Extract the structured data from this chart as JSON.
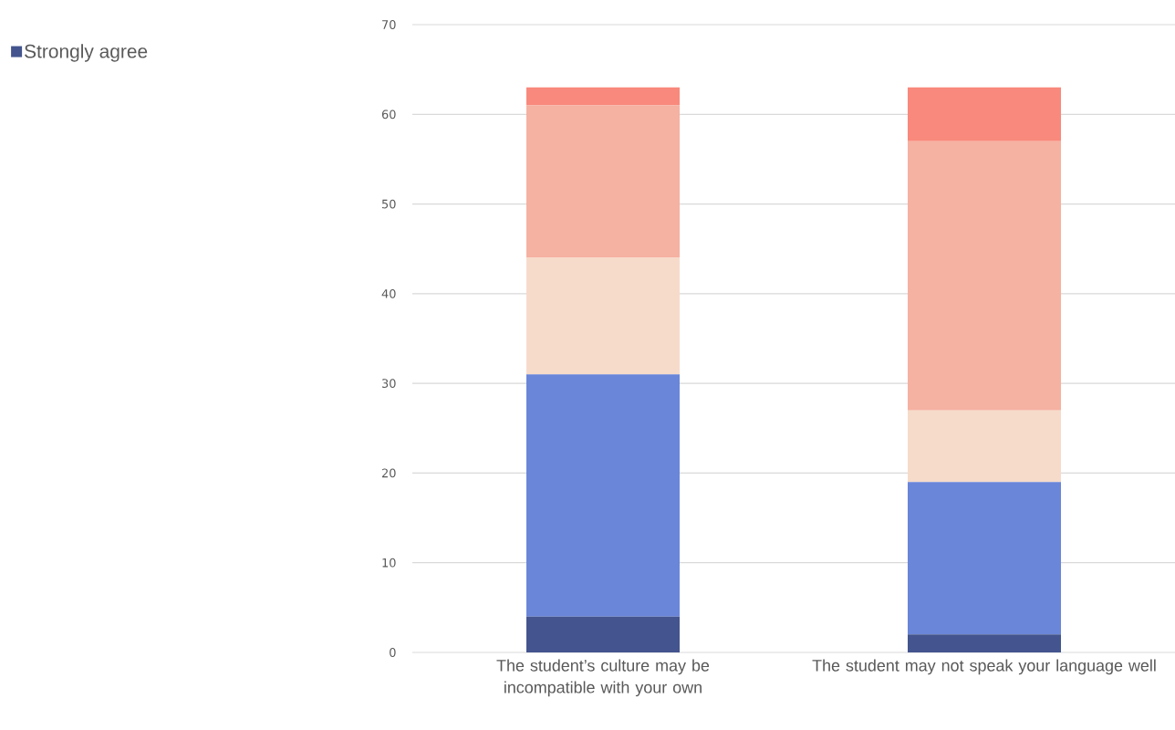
{
  "chart_data": {
    "type": "bar",
    "stacked": true,
    "categories": [
      "The student’s culture may be incompatible with your own",
      "The student may not speak your language well"
    ],
    "series": [
      {
        "name": "Strongly agree",
        "color": "#43548e",
        "values": [
          4,
          2
        ]
      },
      {
        "color": "#6a86d9",
        "values": [
          27,
          17
        ]
      },
      {
        "color": "#f6dbca",
        "values": [
          13,
          8
        ]
      },
      {
        "color": "#f5b1a1",
        "values": [
          17,
          30
        ]
      },
      {
        "color": "#f8897c",
        "values": [
          2,
          6
        ]
      }
    ],
    "ylim": [
      0,
      70
    ],
    "yticks": [
      0,
      10,
      20,
      30,
      40,
      50,
      60,
      70
    ],
    "grid": "y",
    "legend": "top left"
  }
}
